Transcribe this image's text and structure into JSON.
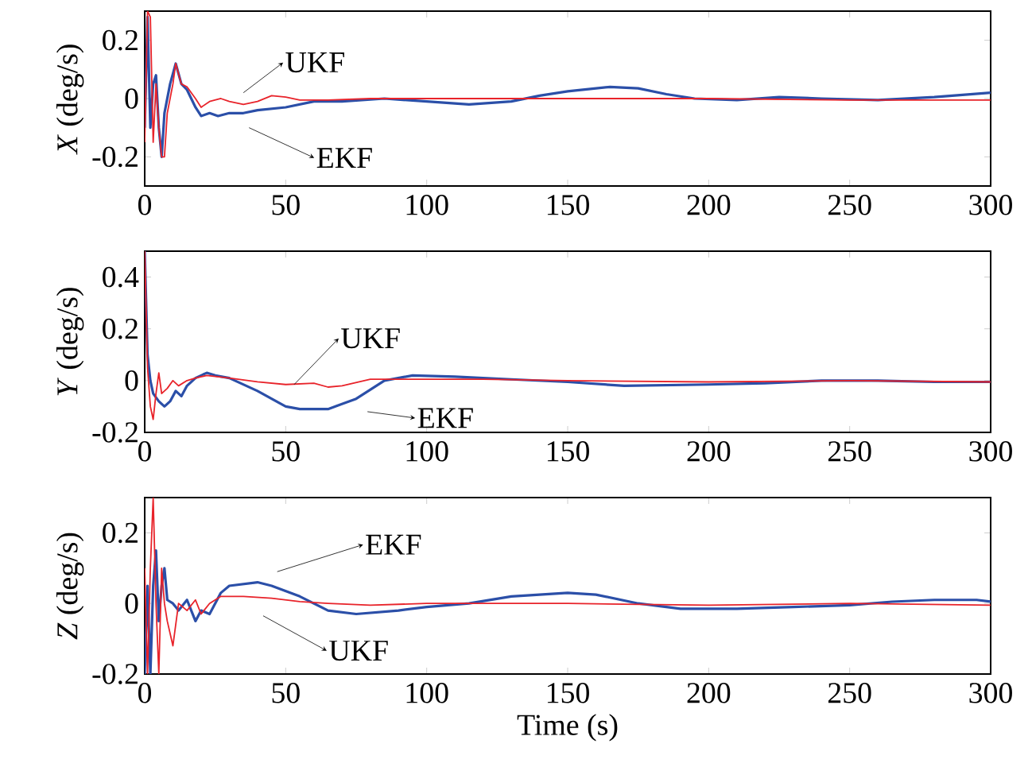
{
  "chart_data": [
    {
      "type": "line",
      "ylabel": "*X* (deg/s)",
      "xlim": [
        0,
        300
      ],
      "xticks": [
        0,
        50,
        100,
        150,
        200,
        250,
        300
      ],
      "ylim": [
        -0.3,
        0.3
      ],
      "yticks": [
        -0.2,
        0,
        0.2
      ],
      "annotations": [
        "UKF",
        "EKF"
      ],
      "series": [
        {
          "color": "#2b4fa8",
          "x": [
            0,
            1,
            2,
            3,
            4,
            5,
            6,
            7,
            9,
            11,
            13,
            15,
            18,
            20,
            23,
            26,
            30,
            35,
            40,
            50,
            60,
            70,
            85,
            100,
            115,
            130,
            140,
            150,
            165,
            175,
            185,
            195,
            210,
            225,
            240,
            260,
            280,
            300
          ],
          "values": [
            -0.1,
            0.28,
            -0.1,
            0.05,
            0.08,
            -0.1,
            -0.2,
            -0.05,
            0.05,
            0.12,
            0.05,
            0.03,
            -0.03,
            -0.06,
            -0.05,
            -0.06,
            -0.05,
            -0.05,
            -0.04,
            -0.03,
            -0.01,
            -0.01,
            0,
            -0.01,
            -0.02,
            -0.01,
            0.01,
            0.025,
            0.04,
            0.035,
            0.015,
            0,
            -0.005,
            0.005,
            0,
            -0.005,
            0.005,
            0.02
          ]
        },
        {
          "color": "#e8232a",
          "x": [
            0,
            1,
            2,
            3,
            4,
            5,
            6,
            7,
            8,
            10,
            11,
            13,
            15,
            18,
            20,
            23,
            27,
            30,
            35,
            40,
            45,
            50,
            55,
            65,
            80,
            100,
            150,
            200,
            250,
            300
          ],
          "values": [
            -0.15,
            0.3,
            0.28,
            -0.15,
            0.05,
            -0.1,
            -0.2,
            -0.2,
            -0.05,
            0.05,
            0.12,
            0.05,
            0.04,
            0,
            -0.03,
            -0.01,
            0,
            -0.01,
            -0.02,
            -0.01,
            0.01,
            0.005,
            -0.005,
            -0.005,
            0,
            0,
            0,
            0,
            -0.005,
            -0.005
          ]
        }
      ]
    },
    {
      "type": "line",
      "ylabel": "*Y* (deg/s)",
      "xlim": [
        0,
        300
      ],
      "xticks": [
        0,
        50,
        100,
        150,
        200,
        250,
        300
      ],
      "ylim": [
        -0.2,
        0.5
      ],
      "yticks": [
        -0.2,
        0,
        0.2,
        0.4
      ],
      "annotations": [
        {
          "text": "UKF",
          "x": 53,
          "y": -0.015
        },
        "EKF"
      ],
      "series": [
        {
          "color": "#2b4fa8",
          "x": [
            0,
            1,
            2,
            3,
            5,
            7,
            9,
            11,
            13,
            15,
            18,
            22,
            25,
            30,
            40,
            50,
            55,
            65,
            75,
            85,
            95,
            110,
            130,
            150,
            170,
            200,
            220,
            240,
            260,
            280,
            300
          ],
          "values": [
            0.5,
            0.1,
            0,
            -0.05,
            -0.08,
            -0.1,
            -0.08,
            -0.04,
            -0.06,
            -0.02,
            0.01,
            0.03,
            0.02,
            0.01,
            -0.04,
            -0.1,
            -0.11,
            -0.11,
            -0.07,
            0,
            0.02,
            0.015,
            0.005,
            -0.005,
            -0.02,
            -0.015,
            -0.01,
            0,
            0,
            -0.005,
            -0.005
          ]
        },
        {
          "color": "#e8232a",
          "x": [
            0,
            1,
            2,
            3,
            4,
            5,
            6,
            8,
            10,
            12,
            15,
            18,
            22,
            30,
            40,
            50,
            60,
            65,
            70,
            80,
            90,
            120,
            150,
            200,
            250,
            300
          ],
          "values": [
            0.5,
            0.05,
            -0.1,
            -0.15,
            -0.05,
            0.03,
            -0.05,
            -0.03,
            0,
            -0.02,
            0,
            0.01,
            0.02,
            0.01,
            -0.005,
            -0.015,
            -0.01,
            -0.025,
            -0.02,
            0.005,
            0.005,
            0.005,
            0,
            -0.005,
            0,
            -0.005
          ]
        }
      ]
    },
    {
      "type": "line",
      "ylabel": "*Z* (deg/s)",
      "xlabel": "Time (s)",
      "xlim": [
        0,
        300
      ],
      "xticks": [
        0,
        50,
        100,
        150,
        200,
        250,
        300
      ],
      "ylim": [
        -0.2,
        0.3
      ],
      "yticks": [
        -0.2,
        0,
        0.2
      ],
      "annotations": [
        "EKF",
        "UKF"
      ],
      "series": [
        {
          "color": "#2b4fa8",
          "x": [
            0,
            1,
            2,
            3,
            4,
            5,
            6,
            7,
            8,
            10,
            12,
            15,
            18,
            20,
            23,
            27,
            30,
            40,
            45,
            55,
            65,
            75,
            90,
            100,
            115,
            130,
            150,
            160,
            175,
            190,
            210,
            230,
            250,
            265,
            280,
            295,
            300
          ],
          "values": [
            -0.2,
            0.05,
            -0.2,
            0.05,
            0.15,
            -0.05,
            0.05,
            0.1,
            0.01,
            0,
            -0.02,
            0.01,
            -0.05,
            -0.02,
            -0.03,
            0.03,
            0.05,
            0.06,
            0.05,
            0.02,
            -0.02,
            -0.03,
            -0.02,
            -0.01,
            0,
            0.02,
            0.03,
            0.025,
            0,
            -0.015,
            -0.015,
            -0.01,
            -0.005,
            0.005,
            0.01,
            0.01,
            0.005
          ]
        },
        {
          "color": "#e8232a",
          "x": [
            0,
            1,
            2,
            3,
            4,
            5,
            6,
            7,
            8,
            10,
            12,
            15,
            18,
            20,
            23,
            27,
            35,
            45,
            55,
            65,
            80,
            100,
            150,
            200,
            250,
            300
          ],
          "values": [
            0.1,
            -0.2,
            0.1,
            0.3,
            0,
            -0.2,
            0.1,
            0,
            -0.05,
            -0.12,
            0,
            -0.02,
            0.01,
            -0.03,
            0,
            0.02,
            0.02,
            0.015,
            0.005,
            0,
            -0.005,
            0,
            0,
            -0.005,
            0,
            -0.005
          ]
        }
      ]
    }
  ]
}
